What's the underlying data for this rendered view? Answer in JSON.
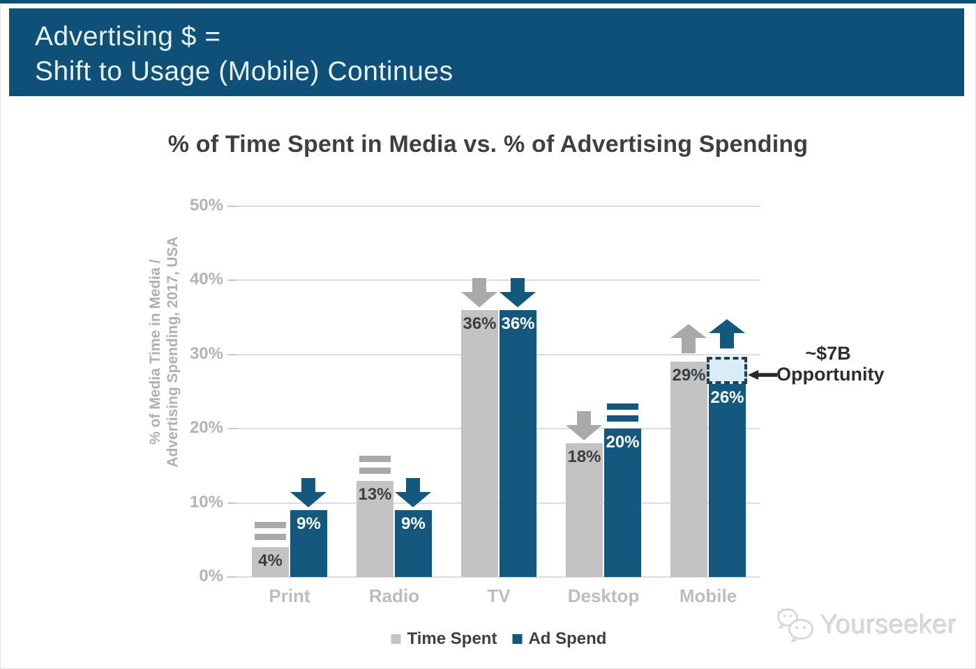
{
  "header": {
    "title_line1": "Advertising $ =",
    "title_line2": "Shift to Usage (Mobile) Continues",
    "banner_color": "#0e5078",
    "top_strip_color": "#0e5078",
    "text_color": "#e8f2f9"
  },
  "chart_data": {
    "type": "bar",
    "title": "% of Time Spent in Media vs. % of Advertising Spending",
    "ylabel_line1": "% of Media Time in Media /",
    "ylabel_line2": "Advertising Spending, 2017, USA",
    "categories": [
      "Print",
      "Radio",
      "TV",
      "Desktop",
      "Mobile"
    ],
    "yticks": [
      "0%",
      "10%",
      "20%",
      "30%",
      "40%",
      "50%"
    ],
    "ylim": [
      0,
      50
    ],
    "grid": "horizontal",
    "legend_position": "bottom",
    "series": [
      {
        "name": "Time Spent",
        "color": "#c3c3c3",
        "marker_color": "#a9a9a9",
        "label_color": "#3a3f44",
        "values": [
          4,
          13,
          36,
          18,
          29
        ],
        "labels": [
          "4%",
          "13%",
          "36%",
          "18%",
          "29%"
        ],
        "trends": [
          "flat",
          "flat",
          "down",
          "down",
          "up"
        ]
      },
      {
        "name": "Ad Spend",
        "color": "#15587e",
        "marker_color": "#15587e",
        "label_color": "#ffffff",
        "values": [
          9,
          9,
          36,
          20,
          26
        ],
        "labels": [
          "9%",
          "9%",
          "36%",
          "20%",
          "26%"
        ],
        "trends": [
          "down",
          "down",
          "down",
          "flat",
          "up"
        ]
      }
    ],
    "annotation": {
      "text_line1": "~$7B",
      "text_line2": "Opportunity",
      "category": "Mobile",
      "series": "Ad Spend",
      "box_bottom_value": 26,
      "box_top_value": 29.7,
      "box_fill": "#d9edf9",
      "box_border": "#1d405c"
    }
  },
  "watermark": {
    "brand": "Yourseeker",
    "icon": "chat-bubbles-icon"
  }
}
